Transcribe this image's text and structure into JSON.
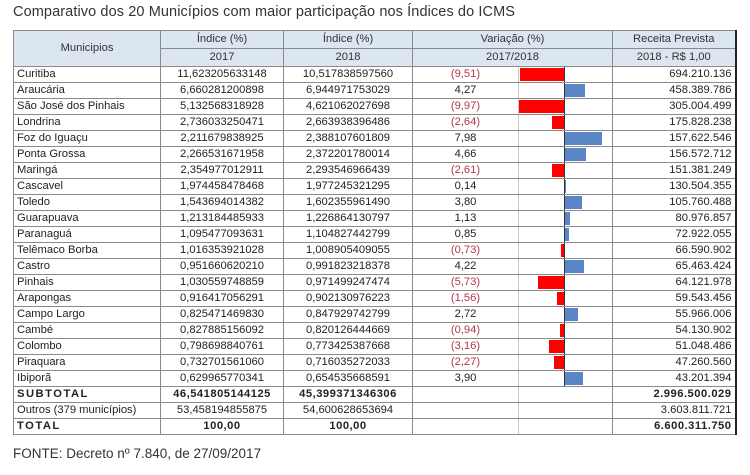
{
  "title": "Comparativo dos 20 Municípios com maior participação nos Índices do ICMS",
  "header": {
    "municipios": "Municipios",
    "indice_2017_top": "Índice (%)",
    "indice_2017_year": "2017",
    "indice_2018_top": "Índice (%)",
    "indice_2018_year": "2018",
    "variacao_top": "Variação (%)",
    "variacao_period": "2017/2018",
    "receita_top": "Receita Prevista",
    "receita_sub": "2018 - R$ 1,00"
  },
  "rows": [
    {
      "municipio": "Curitiba",
      "indice_2017": "11,623205633148",
      "indice_2018": "10,517838597560",
      "variacao": "(9,51)",
      "variacao_value": -9.51,
      "receita": "694.210.136"
    },
    {
      "municipio": "Araucária",
      "indice_2017": "6,660281200898",
      "indice_2018": "6,944971753029",
      "variacao": "4,27",
      "variacao_value": 4.27,
      "receita": "458.389.786"
    },
    {
      "municipio": "São José dos Pinhais",
      "indice_2017": "5,132568318928",
      "indice_2018": "4,621062027698",
      "variacao": "(9,97)",
      "variacao_value": -9.97,
      "receita": "305.004.499"
    },
    {
      "municipio": "Londrina",
      "indice_2017": "2,736033250471",
      "indice_2018": "2,663938396486",
      "variacao": "(2,64)",
      "variacao_value": -2.64,
      "receita": "175.828.238"
    },
    {
      "municipio": "Foz do Iguaçu",
      "indice_2017": "2,211679838925",
      "indice_2018": "2,388107601809",
      "variacao": "7,98",
      "variacao_value": 7.98,
      "receita": "157.622.546"
    },
    {
      "municipio": "Ponta Grossa",
      "indice_2017": "2,266531671958",
      "indice_2018": "2,372201780014",
      "variacao": "4,66",
      "variacao_value": 4.66,
      "receita": "156.572.712"
    },
    {
      "municipio": "Maringá",
      "indice_2017": "2,354977012911",
      "indice_2018": "2,293546966439",
      "variacao": "(2,61)",
      "variacao_value": -2.61,
      "receita": "151.381.249"
    },
    {
      "municipio": "Cascavel",
      "indice_2017": "1,974458478468",
      "indice_2018": "1,977245321295",
      "variacao": "0,14",
      "variacao_value": 0.14,
      "receita": "130.504.355"
    },
    {
      "municipio": "Toledo",
      "indice_2017": "1,543694014382",
      "indice_2018": "1,602355961490",
      "variacao": "3,80",
      "variacao_value": 3.8,
      "receita": "105.760.488"
    },
    {
      "municipio": "Guarapuava",
      "indice_2017": "1,213184485933",
      "indice_2018": "1,226864130797",
      "variacao": "1,13",
      "variacao_value": 1.13,
      "receita": "80.976.857"
    },
    {
      "municipio": "Paranaguá",
      "indice_2017": "1,095477093631",
      "indice_2018": "1,104827442799",
      "variacao": "0,85",
      "variacao_value": 0.85,
      "receita": "72.922.055"
    },
    {
      "municipio": "Telêmaco Borba",
      "indice_2017": "1,016353921028",
      "indice_2018": "1,008905409055",
      "variacao": "(0,73)",
      "variacao_value": -0.73,
      "receita": "66.590.902"
    },
    {
      "municipio": "Castro",
      "indice_2017": "0,951660620210",
      "indice_2018": "0,991823218378",
      "variacao": "4,22",
      "variacao_value": 4.22,
      "receita": "65.463.424"
    },
    {
      "municipio": "Pinhais",
      "indice_2017": "1,030559748859",
      "indice_2018": "0,971499247474",
      "variacao": "(5,73)",
      "variacao_value": -5.73,
      "receita": "64.121.978"
    },
    {
      "municipio": "Arapongas",
      "indice_2017": "0,916417056291",
      "indice_2018": "0,902130976223",
      "variacao": "(1,56)",
      "variacao_value": -1.56,
      "receita": "59.543.456"
    },
    {
      "municipio": "Campo Largo",
      "indice_2017": "0,825471469830",
      "indice_2018": "0,847929742799",
      "variacao": "2,72",
      "variacao_value": 2.72,
      "receita": "55.966.006"
    },
    {
      "municipio": "Cambé",
      "indice_2017": "0,827885156092",
      "indice_2018": "0,820126444669",
      "variacao": "(0,94)",
      "variacao_value": -0.94,
      "receita": "54.130.902"
    },
    {
      "municipio": "Colombo",
      "indice_2017": "0,798698840761",
      "indice_2018": "0,773425387668",
      "variacao": "(3,16)",
      "variacao_value": -3.16,
      "receita": "51.048.486"
    },
    {
      "municipio": "Piraquara",
      "indice_2017": "0,732701561060",
      "indice_2018": "0,716035272033",
      "variacao": "(2,27)",
      "variacao_value": -2.27,
      "receita": "47.260.560"
    },
    {
      "municipio": "Ibiporã",
      "indice_2017": "0,629965770341",
      "indice_2018": "0,654535668591",
      "variacao": "3,90",
      "variacao_value": 3.9,
      "receita": "43.201.394"
    }
  ],
  "subtotal": {
    "label": "SUBTOTAL",
    "indice_2017": "46,541805144125",
    "indice_2018": "45,399371346306",
    "receita": "2.996.500.029"
  },
  "outros": {
    "label": "Outros (379 municípios)",
    "indice_2017": "53,458194855875",
    "indice_2018": "54,600628653694",
    "receita": "3.603.811.721"
  },
  "total": {
    "label": "TOTAL",
    "indice_2017": "100,00",
    "indice_2018": "100,00",
    "receita": "6.600.311.750"
  },
  "footer": "FONTE: Decreto nº 7.840, de 27/09/2017",
  "colors": {
    "positive_bar": "#5b86c5",
    "negative_bar": "#ff0000",
    "negative_text": "#b2384a",
    "header_bg": "#dce6f1"
  }
}
